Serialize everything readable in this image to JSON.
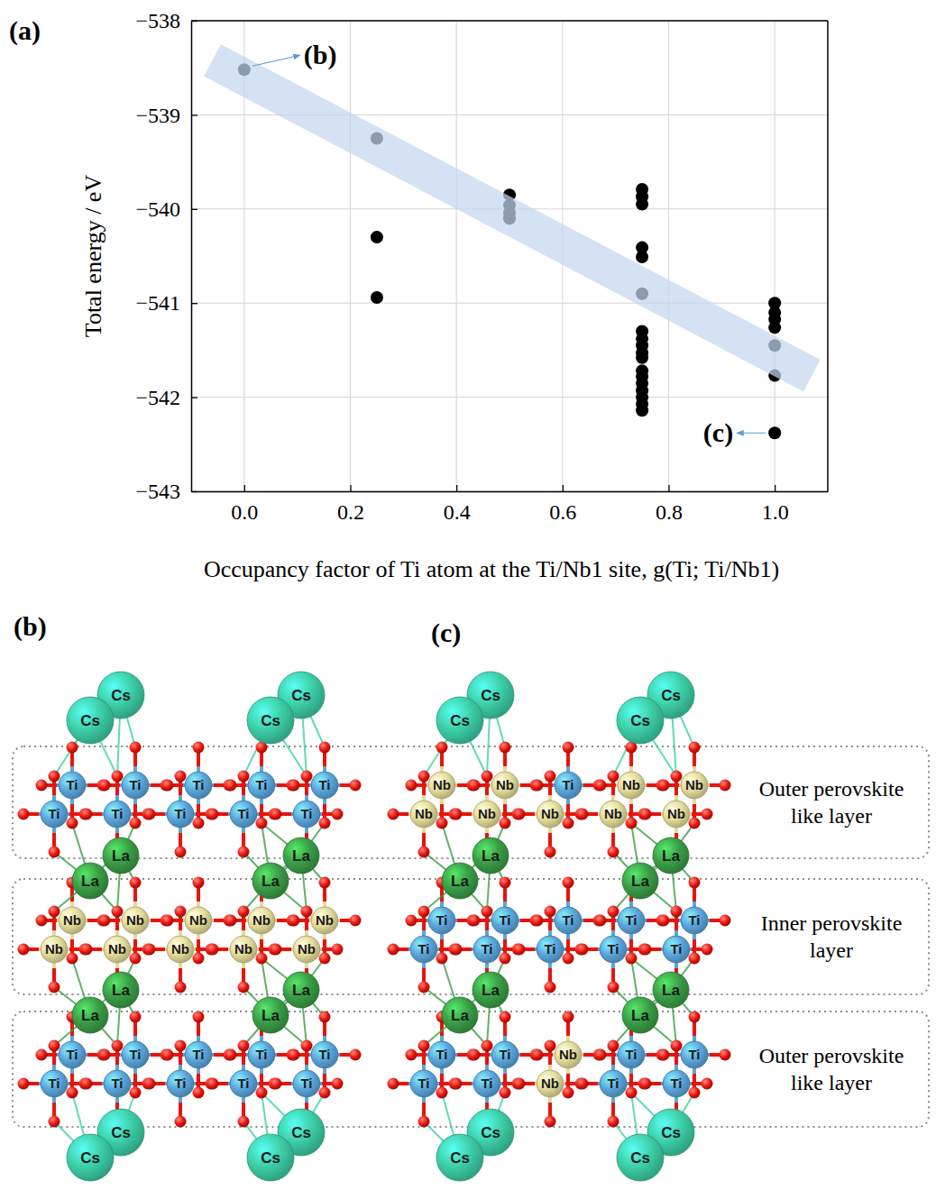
{
  "chart_data": {
    "type": "scatter",
    "panel_label": "(a)",
    "x_label": "Occupancy factor of Ti atom at the Ti/Nb1 site, g(Ti; Ti/Nb1)",
    "y_label": "Total energy / eV",
    "xlim": [
      -0.1,
      1.1
    ],
    "ylim": [
      -543,
      -538
    ],
    "xticks": [
      {
        "value": 0,
        "label": "0.0"
      },
      0.2,
      0.4,
      0.6,
      0.8,
      {
        "value": 1,
        "label": "1.0"
      }
    ],
    "yticks": [
      {
        "value": -543,
        "label": "−543"
      },
      {
        "value": -542,
        "label": "−542"
      },
      {
        "value": -541,
        "label": "−541"
      },
      {
        "value": -540,
        "label": "−540"
      },
      {
        "value": -539,
        "label": "−539"
      },
      {
        "value": -538,
        "label": "−538"
      }
    ],
    "grid": true,
    "series": [
      {
        "type": "scatter",
        "color": "#000000",
        "marker": "circle",
        "x": [
          0,
          0.25,
          0.25,
          0.25,
          0.5,
          0.5,
          0.5,
          0.5,
          0.75,
          0.75,
          0.75,
          0.75,
          0.75,
          0.75,
          0.75,
          0.75,
          0.75,
          0.75,
          0.75,
          0.75,
          0.75,
          0.75,
          0.75,
          0.75,
          0.75,
          0.75,
          1,
          1,
          1,
          1,
          1,
          1,
          1
        ],
        "values": [
          -538.52,
          -539.25,
          -540.3,
          -540.94,
          -539.85,
          -539.96,
          -540.04,
          -540.1,
          -539.79,
          -539.87,
          -539.95,
          -540.41,
          -540.51,
          -540.9,
          -541.3,
          -541.45,
          -541.53,
          -541.78,
          -541.85,
          -541.93,
          -542.0,
          -542.07,
          -542.14,
          -541.38,
          -541.58,
          -541.72,
          -541.0,
          -541.1,
          -541.17,
          -541.26,
          -541.45,
          -541.77,
          -542.38
        ]
      },
      {
        "type": "band",
        "color": "#c3d7ee",
        "line_style": "solid",
        "x": [
          -0.06,
          1.07
        ],
        "values": [
          -538.42,
          -541.77
        ]
      }
    ],
    "annotations": [
      {
        "text": "(b)",
        "x": 0,
        "y": -538.52
      },
      {
        "text": "(c)",
        "x": 1,
        "y": -542.38
      }
    ]
  },
  "atom_colors": {
    "Cs": "#3ccfa6",
    "Ti": "#5aa5dc",
    "Nb": "#e4dc98",
    "La": "#3a9e46"
  },
  "layers": [
    "Outer perovskite like layer",
    "Inner perovskite layer",
    "Outer perovskite like layer"
  ],
  "structures": [
    {
      "label": "(b)",
      "rows": [
        {
          "atoms": [
            "Cs",
            "Cs",
            "Cs",
            "Cs"
          ]
        },
        {
          "atoms": [
            "Ti",
            "Ti",
            "Ti",
            "Ti",
            "Ti",
            "Ti",
            "Ti",
            "Ti",
            "Ti",
            "Ti"
          ]
        },
        {
          "atoms": [
            "La",
            "La",
            "La",
            "La"
          ]
        },
        {
          "atoms": [
            "Nb",
            "Nb",
            "Nb",
            "Nb",
            "Nb",
            "Nb",
            "Nb",
            "Nb",
            "Nb",
            "Nb"
          ]
        },
        {
          "atoms": [
            "La",
            "La",
            "La",
            "La"
          ]
        },
        {
          "atoms": [
            "Ti",
            "Ti",
            "Ti",
            "Ti",
            "Ti",
            "Ti",
            "Ti",
            "Ti",
            "Ti",
            "Ti"
          ]
        },
        {
          "atoms": [
            "Cs",
            "Cs",
            "Cs",
            "Cs"
          ]
        }
      ]
    },
    {
      "label": "(c)",
      "rows": [
        {
          "atoms": [
            "Cs",
            "Cs",
            "Cs",
            "Cs"
          ]
        },
        {
          "atoms": [
            "Nb",
            "Nb",
            "Ti",
            "Nb",
            "Nb",
            "Nb",
            "Nb",
            "Nb",
            "Nb",
            "Nb"
          ]
        },
        {
          "atoms": [
            "La",
            "La",
            "La",
            "La"
          ]
        },
        {
          "atoms": [
            "Ti",
            "Ti",
            "Ti",
            "Ti",
            "Ti",
            "Ti",
            "Ti",
            "Ti",
            "Ti",
            "Ti"
          ]
        },
        {
          "atoms": [
            "La",
            "La",
            "La",
            "La"
          ]
        },
        {
          "atoms": [
            "Ti",
            "Ti",
            "Nb",
            "Ti",
            "Ti",
            "Ti",
            "Ti",
            "Nb",
            "Ti",
            "Ti"
          ]
        },
        {
          "atoms": [
            "Cs",
            "Cs",
            "Cs",
            "Cs"
          ]
        }
      ]
    }
  ]
}
